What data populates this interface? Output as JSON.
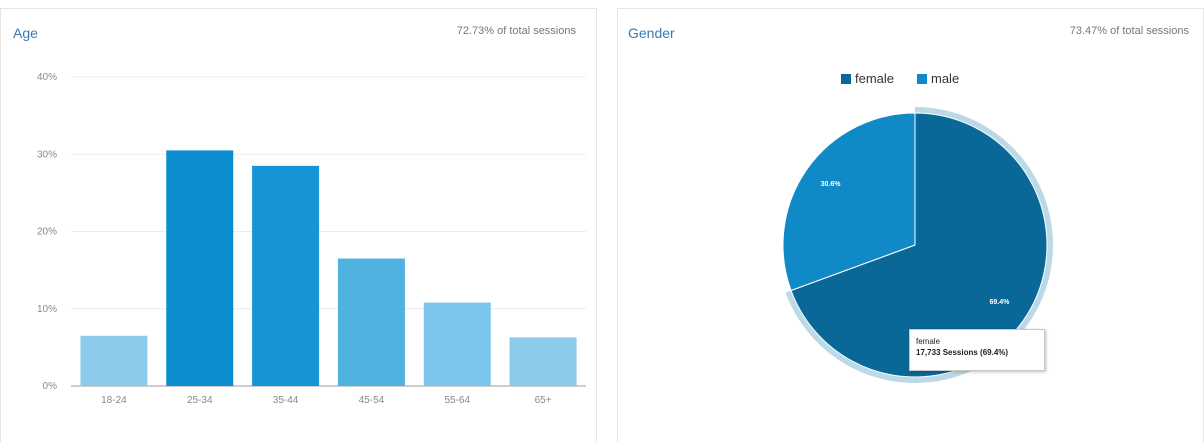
{
  "age_panel": {
    "title": "Age",
    "subtitle": "72.73% of total sessions"
  },
  "gender_panel": {
    "title": "Gender",
    "subtitle": "73.47% of total sessions",
    "tooltip": {
      "title": "female",
      "value": "17,733 Sessions (69.4%)"
    }
  },
  "chart_data": [
    {
      "type": "bar",
      "title": "Age",
      "categories": [
        "18-24",
        "25-34",
        "35-44",
        "45-54",
        "55-64",
        "65+"
      ],
      "values": [
        6.5,
        30.5,
        28.5,
        16.5,
        10.8,
        6.3
      ],
      "ylim": [
        0,
        40
      ],
      "yticks": [
        "0%",
        "10%",
        "20%",
        "30%",
        "40%"
      ],
      "grid": true,
      "colors": [
        "#8ecbeb",
        "#0b8dcf",
        "#1694d3",
        "#4fb2e1",
        "#7cc5ec",
        "#8ecbeb"
      ]
    },
    {
      "type": "pie",
      "title": "Gender",
      "categories": [
        "female",
        "male"
      ],
      "values": [
        69.4,
        30.6
      ],
      "labels": [
        "69.4%",
        "30.6%"
      ],
      "legend": "top",
      "colors": [
        "#0a6898",
        "#0f8ac6"
      ]
    }
  ]
}
